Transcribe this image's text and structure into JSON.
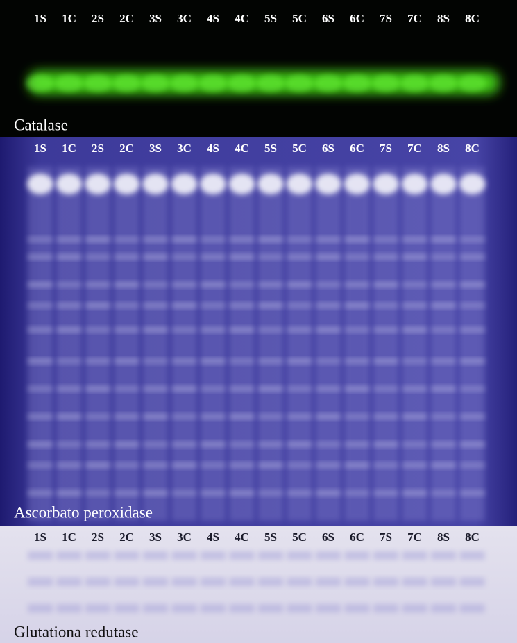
{
  "panels": [
    {
      "title": "Catalase",
      "lanes": [
        "1S",
        "1C",
        "2S",
        "2C",
        "3S",
        "3C",
        "4S",
        "4C",
        "5S",
        "5C",
        "6S",
        "6C",
        "7S",
        "7C",
        "8S",
        "8C"
      ]
    },
    {
      "title": "Ascorbato peroxidase",
      "lanes": [
        "1S",
        "1C",
        "2S",
        "2C",
        "3S",
        "3C",
        "4S",
        "4C",
        "5S",
        "5C",
        "6S",
        "6C",
        "7S",
        "7C",
        "8S",
        "8C"
      ]
    },
    {
      "title": "Glutationa redutase",
      "lanes": [
        "1S",
        "1C",
        "2S",
        "2C",
        "3S",
        "3C",
        "4S",
        "4C",
        "5S",
        "5C",
        "6S",
        "6C",
        "7S",
        "7C",
        "8S",
        "8C"
      ]
    }
  ]
}
